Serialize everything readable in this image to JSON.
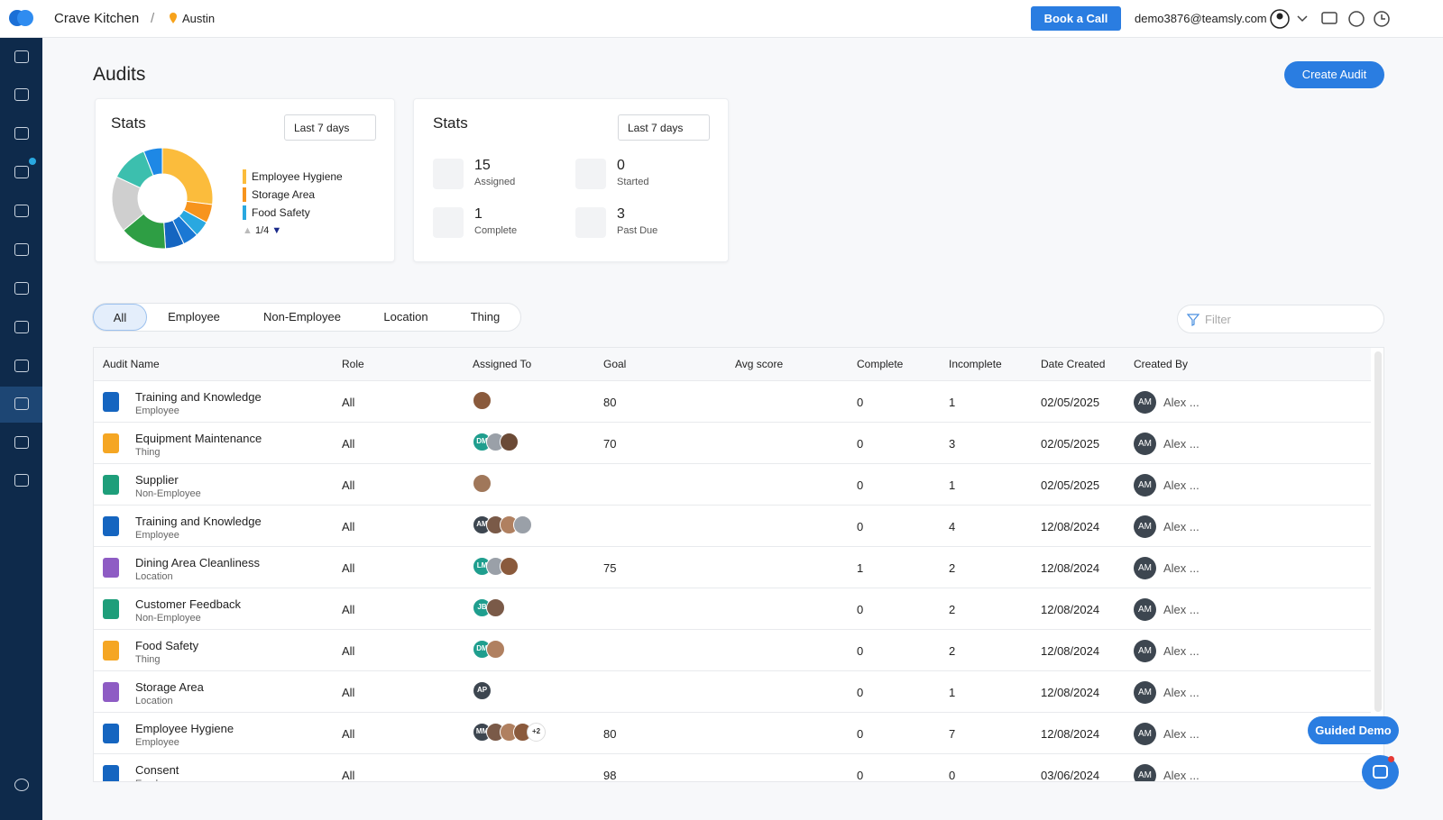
{
  "header": {
    "brand": "Crave Kitchen",
    "separator": "/",
    "location": "Austin",
    "book_call": "Book a Call",
    "email": "demo3876@teamsly.com"
  },
  "page": {
    "title": "Audits",
    "create_button": "Create Audit"
  },
  "stats_chart": {
    "title": "Stats",
    "range": "Last 7 days",
    "values": [
      27,
      6,
      5,
      5,
      6,
      15,
      18,
      12,
      6
    ],
    "colors": [
      "#fbbc3c",
      "#f7941d",
      "#29a8e0",
      "#1a78d4",
      "#1565c0",
      "#2e9e44",
      "#cfcfcf",
      "#3cbfae",
      "#1e88e5"
    ],
    "legend": [
      {
        "name": "Employee Hygiene",
        "color": "#fbbc3c"
      },
      {
        "name": "Storage Area",
        "color": "#f7941d"
      },
      {
        "name": "Food Safety",
        "color": "#29a8e0"
      }
    ],
    "pager": "1/4"
  },
  "stats_summary": {
    "title": "Stats",
    "range": "Last 7 days",
    "items": [
      {
        "value": 15,
        "label": "Assigned"
      },
      {
        "value": 0,
        "label": "Started"
      },
      {
        "value": 1,
        "label": "Complete"
      },
      {
        "value": 3,
        "label": "Past Due"
      }
    ]
  },
  "tabs": [
    "All",
    "Employee",
    "Non-Employee",
    "Location",
    "Thing"
  ],
  "filter_placeholder": "Filter",
  "table": {
    "columns": [
      "Audit Name",
      "Role",
      "Assigned To",
      "Goal",
      "Avg score",
      "Complete",
      "Incomplete",
      "Date Created",
      "Created By"
    ],
    "rows": [
      {
        "name": "Training and Knowledge",
        "type": "Employee",
        "role": "All",
        "assigned": [
          {
            "color": "#8a5a3c"
          }
        ],
        "goal": 80,
        "complete": 0,
        "incomplete": 1,
        "date": "02/05/2025",
        "creator_initials": "AM",
        "created_by": "Alex ..."
      },
      {
        "name": "Equipment Maintenance",
        "type": "Thing",
        "role": "All",
        "assigned": [
          {
            "initials": "DM",
            "color": "#1f9e8e"
          },
          {
            "color": "#9aa0a8"
          },
          {
            "color": "#6b4a36"
          }
        ],
        "goal": 70,
        "complete": 0,
        "incomplete": 3,
        "date": "02/05/2025",
        "creator_initials": "AM",
        "created_by": "Alex ..."
      },
      {
        "name": "Supplier",
        "type": "Non-Employee",
        "role": "All",
        "assigned": [
          {
            "color": "#a0775a"
          }
        ],
        "complete": 0,
        "incomplete": 1,
        "date": "02/05/2025",
        "creator_initials": "AM",
        "created_by": "Alex ..."
      },
      {
        "name": "Training and Knowledge",
        "type": "Employee",
        "role": "All",
        "assigned": [
          {
            "initials": "AM",
            "color": "#3d4650"
          },
          {
            "color": "#7a5a48"
          },
          {
            "color": "#b08060"
          },
          {
            "color": "#9aa0a8"
          }
        ],
        "complete": 0,
        "incomplete": 4,
        "date": "12/08/2024",
        "creator_initials": "AM",
        "created_by": "Alex ..."
      },
      {
        "name": "Dining Area Cleanliness",
        "type": "Location",
        "role": "All",
        "assigned": [
          {
            "initials": "LM",
            "color": "#1f9e8e"
          },
          {
            "color": "#9aa0a8"
          },
          {
            "color": "#8a5a3c"
          }
        ],
        "goal": 75,
        "complete": 1,
        "incomplete": 2,
        "date": "12/08/2024",
        "creator_initials": "AM",
        "created_by": "Alex ..."
      },
      {
        "name": "Customer Feedback",
        "type": "Non-Employee",
        "role": "All",
        "assigned": [
          {
            "initials": "JB",
            "color": "#1f9e8e"
          },
          {
            "color": "#7a5a48"
          }
        ],
        "complete": 0,
        "incomplete": 2,
        "date": "12/08/2024",
        "creator_initials": "AM",
        "created_by": "Alex ..."
      },
      {
        "name": "Food Safety",
        "type": "Thing",
        "role": "All",
        "assigned": [
          {
            "initials": "DM",
            "color": "#1f9e8e"
          },
          {
            "color": "#b08060"
          }
        ],
        "complete": 0,
        "incomplete": 2,
        "date": "12/08/2024",
        "creator_initials": "AM",
        "created_by": "Alex ..."
      },
      {
        "name": "Storage Area",
        "type": "Location",
        "role": "All",
        "assigned": [
          {
            "initials": "AP",
            "color": "#3d4650"
          }
        ],
        "complete": 0,
        "incomplete": 1,
        "date": "12/08/2024",
        "creator_initials": "AM",
        "created_by": "Alex ..."
      },
      {
        "name": "Employee Hygiene",
        "type": "Employee",
        "role": "All",
        "assigned": [
          {
            "initials": "MM",
            "color": "#3d4650"
          },
          {
            "color": "#7a5a48"
          },
          {
            "color": "#b08060"
          },
          {
            "color": "#8a5a3c"
          }
        ],
        "assigned_more": "+2",
        "goal": 80,
        "complete": 0,
        "incomplete": 7,
        "date": "12/08/2024",
        "creator_initials": "AM",
        "created_by": "Alex ..."
      },
      {
        "name": "Consent",
        "type": "Employee",
        "role": "All",
        "assigned": [],
        "goal": 98,
        "complete": 0,
        "incomplete": 0,
        "date": "03/06/2024",
        "creator_initials": "AM",
        "created_by": "Alex ..."
      }
    ]
  },
  "guided_demo": "Guided Demo"
}
